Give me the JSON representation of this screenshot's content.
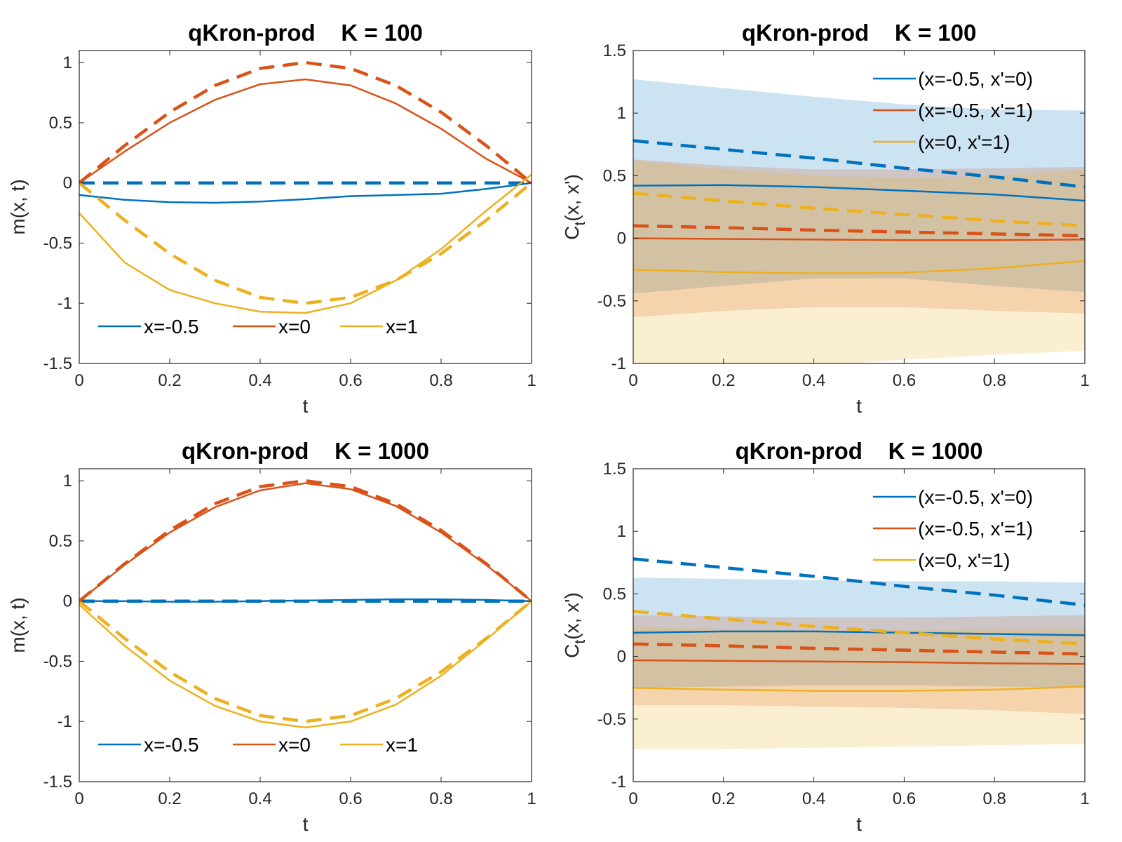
{
  "chart_data": [
    {
      "type": "line",
      "title": "qKron-prod    K = 100",
      "xlabel": "t",
      "ylabel": "m(x, t)",
      "xlim": [
        0,
        1
      ],
      "ylim": [
        -1.5,
        1.1
      ],
      "xticks": [
        0,
        0.2,
        0.4,
        0.6,
        0.8,
        1
      ],
      "xtick_labels": [
        "0",
        "0.2",
        "0.4",
        "0.6",
        "0.8",
        "1"
      ],
      "yticks": [
        -1.5,
        -1,
        -0.5,
        0,
        0.5,
        1
      ],
      "ytick_labels": [
        "-1.5",
        "-1",
        "-0.5",
        "0",
        "0.5",
        "1"
      ],
      "legend_position": "bottom",
      "legend_layout": "horizontal",
      "legend": [
        "x=-0.5",
        "x=0",
        "x=1"
      ],
      "series": [
        {
          "name": "x=-0.5",
          "color": "#0072BD",
          "x": [
            0,
            0.1,
            0.2,
            0.3,
            0.4,
            0.5,
            0.6,
            0.7,
            0.8,
            0.9,
            1
          ],
          "mean": [
            -0.1,
            -0.14,
            -0.16,
            -0.165,
            -0.155,
            -0.135,
            -0.11,
            -0.1,
            -0.09,
            -0.05,
            0
          ],
          "truth": [
            0,
            0,
            0,
            0,
            0,
            0,
            0,
            0,
            0,
            0,
            0
          ]
        },
        {
          "name": "x=0",
          "color": "#D95319",
          "x": [
            0,
            0.1,
            0.2,
            0.3,
            0.4,
            0.5,
            0.6,
            0.7,
            0.8,
            0.9,
            1
          ],
          "mean": [
            0,
            0.26,
            0.5,
            0.69,
            0.82,
            0.86,
            0.81,
            0.66,
            0.45,
            0.2,
            0
          ],
          "truth": [
            0,
            0.309,
            0.588,
            0.809,
            0.951,
            1,
            0.951,
            0.809,
            0.588,
            0.309,
            0
          ]
        },
        {
          "name": "x=1",
          "color": "#EDB120",
          "x": [
            0,
            0.1,
            0.2,
            0.3,
            0.4,
            0.5,
            0.6,
            0.7,
            0.8,
            0.9,
            1
          ],
          "mean": [
            -0.25,
            -0.66,
            -0.89,
            -1.0,
            -1.07,
            -1.08,
            -1.0,
            -0.81,
            -0.55,
            -0.23,
            0.07
          ],
          "truth": [
            0,
            -0.309,
            -0.588,
            -0.809,
            -0.951,
            -1,
            -0.951,
            -0.809,
            -0.588,
            -0.309,
            0
          ]
        }
      ]
    },
    {
      "type": "line",
      "title": "qKron-prod    K = 100",
      "xlabel": "t",
      "ylabel": "C_t(x, x')",
      "xlim": [
        0,
        1
      ],
      "ylim": [
        -1,
        1.5
      ],
      "xticks": [
        0,
        0.2,
        0.4,
        0.6,
        0.8,
        1
      ],
      "xtick_labels": [
        "0",
        "0.2",
        "0.4",
        "0.6",
        "0.8",
        "1"
      ],
      "yticks": [
        -1,
        -0.5,
        0,
        0.5,
        1,
        1.5
      ],
      "ytick_labels": [
        "-1",
        "-0.5",
        "0",
        "0.5",
        "1",
        "1.5"
      ],
      "legend_position": "top-right",
      "legend_layout": "vertical",
      "legend": [
        "(x=-0.5, x'=0)",
        "(x=-0.5, x'=1)",
        "(x=0, x'=1)"
      ],
      "series": [
        {
          "name": "(x=-0.5, x'=0)",
          "color": "#0072BD",
          "x": [
            0,
            0.2,
            0.4,
            0.6,
            0.8,
            1
          ],
          "mean": [
            0.42,
            0.425,
            0.41,
            0.38,
            0.35,
            0.3
          ],
          "band_upper": [
            1.27,
            1.2,
            1.13,
            1.07,
            1.03,
            1.02
          ],
          "band_lower": [
            -0.44,
            -0.38,
            -0.32,
            -0.32,
            -0.38,
            -0.43
          ],
          "truth": [
            0.78,
            0.71,
            0.64,
            0.56,
            0.49,
            0.41
          ]
        },
        {
          "name": "(x=-0.5, x'=1)",
          "color": "#D95319",
          "x": [
            0,
            0.2,
            0.4,
            0.6,
            0.8,
            1
          ],
          "mean": [
            0.0,
            -0.005,
            -0.01,
            -0.015,
            -0.015,
            -0.01
          ],
          "band_upper": [
            0.63,
            0.58,
            0.55,
            0.55,
            0.56,
            0.57
          ],
          "band_lower": [
            -0.63,
            -0.58,
            -0.55,
            -0.55,
            -0.58,
            -0.6
          ],
          "truth": [
            0.1,
            0.085,
            0.065,
            0.05,
            0.035,
            0.02
          ]
        },
        {
          "name": "(x=0, x'=1)",
          "color": "#EDB120",
          "x": [
            0,
            0.2,
            0.4,
            0.6,
            0.8,
            1
          ],
          "mean": [
            -0.25,
            -0.27,
            -0.28,
            -0.275,
            -0.24,
            -0.18
          ],
          "band_upper": [
            0.62,
            0.55,
            0.5,
            0.48,
            0.5,
            0.55
          ],
          "band_lower": [
            -1.05,
            -1.05,
            -1.02,
            -0.97,
            -0.93,
            -0.9
          ],
          "truth": [
            0.36,
            0.3,
            0.24,
            0.19,
            0.14,
            0.1
          ]
        }
      ]
    },
    {
      "type": "line",
      "title": "qKron-prod    K = 1000",
      "xlabel": "t",
      "ylabel": "m(x, t)",
      "xlim": [
        0,
        1
      ],
      "ylim": [
        -1.5,
        1.1
      ],
      "xticks": [
        0,
        0.2,
        0.4,
        0.6,
        0.8,
        1
      ],
      "xtick_labels": [
        "0",
        "0.2",
        "0.4",
        "0.6",
        "0.8",
        "1"
      ],
      "yticks": [
        -1.5,
        -1,
        -0.5,
        0,
        0.5,
        1
      ],
      "ytick_labels": [
        "-1.5",
        "-1",
        "-0.5",
        "0",
        "0.5",
        "1"
      ],
      "legend_position": "bottom",
      "legend_layout": "horizontal",
      "legend": [
        "x=-0.5",
        "x=0",
        "x=1"
      ],
      "series": [
        {
          "name": "x=-0.5",
          "color": "#0072BD",
          "x": [
            0,
            0.1,
            0.2,
            0.3,
            0.4,
            0.5,
            0.6,
            0.7,
            0.8,
            0.9,
            1
          ],
          "mean": [
            0,
            0,
            -0.005,
            -0.005,
            0,
            0.005,
            0.01,
            0.015,
            0.015,
            0.01,
            0
          ],
          "truth": [
            0,
            0,
            0,
            0,
            0,
            0,
            0,
            0,
            0,
            0,
            0
          ]
        },
        {
          "name": "x=0",
          "color": "#D95319",
          "x": [
            0,
            0.1,
            0.2,
            0.3,
            0.4,
            0.5,
            0.6,
            0.7,
            0.8,
            0.9,
            1
          ],
          "mean": [
            0,
            0.3,
            0.57,
            0.78,
            0.92,
            0.98,
            0.93,
            0.79,
            0.57,
            0.3,
            0
          ],
          "truth": [
            0,
            0.309,
            0.588,
            0.809,
            0.951,
            1,
            0.951,
            0.809,
            0.588,
            0.309,
            0
          ]
        },
        {
          "name": "x=1",
          "color": "#EDB120",
          "x": [
            0,
            0.1,
            0.2,
            0.3,
            0.4,
            0.5,
            0.6,
            0.7,
            0.8,
            0.9,
            1
          ],
          "mean": [
            -0.03,
            -0.37,
            -0.66,
            -0.87,
            -1.0,
            -1.05,
            -1.0,
            -0.86,
            -0.62,
            -0.32,
            0
          ],
          "truth": [
            0,
            -0.309,
            -0.588,
            -0.809,
            -0.951,
            -1,
            -0.951,
            -0.809,
            -0.588,
            -0.309,
            0
          ]
        }
      ]
    },
    {
      "type": "line",
      "title": "qKron-prod    K = 1000",
      "xlabel": "t",
      "ylabel": "C_t(x, x')",
      "xlim": [
        0,
        1
      ],
      "ylim": [
        -1,
        1.5
      ],
      "xticks": [
        0,
        0.2,
        0.4,
        0.6,
        0.8,
        1
      ],
      "xtick_labels": [
        "0",
        "0.2",
        "0.4",
        "0.6",
        "0.8",
        "1"
      ],
      "yticks": [
        -1,
        -0.5,
        0,
        0.5,
        1,
        1.5
      ],
      "ytick_labels": [
        "-1",
        "-0.5",
        "0",
        "0.5",
        "1",
        "1.5"
      ],
      "legend_position": "top-right",
      "legend_layout": "vertical",
      "legend": [
        "(x=-0.5, x'=0)",
        "(x=-0.5, x'=1)",
        "(x=0, x'=1)"
      ],
      "series": [
        {
          "name": "(x=-0.5, x'=0)",
          "color": "#0072BD",
          "x": [
            0,
            0.2,
            0.4,
            0.6,
            0.8,
            1
          ],
          "mean": [
            0.19,
            0.2,
            0.2,
            0.19,
            0.18,
            0.17
          ],
          "band_upper": [
            0.63,
            0.62,
            0.61,
            0.6,
            0.6,
            0.59
          ],
          "band_lower": [
            -0.25,
            -0.24,
            -0.23,
            -0.23,
            -0.24,
            -0.25
          ],
          "truth": [
            0.78,
            0.71,
            0.64,
            0.56,
            0.49,
            0.41
          ]
        },
        {
          "name": "(x=-0.5, x'=1)",
          "color": "#D95319",
          "x": [
            0,
            0.2,
            0.4,
            0.6,
            0.8,
            1
          ],
          "mean": [
            -0.03,
            -0.035,
            -0.04,
            -0.045,
            -0.055,
            -0.06
          ],
          "band_upper": [
            0.33,
            0.32,
            0.31,
            0.31,
            0.32,
            0.33
          ],
          "band_lower": [
            -0.39,
            -0.39,
            -0.4,
            -0.41,
            -0.43,
            -0.46
          ],
          "truth": [
            0.1,
            0.085,
            0.065,
            0.05,
            0.035,
            0.02
          ]
        },
        {
          "name": "(x=0, x'=1)",
          "color": "#EDB120",
          "x": [
            0,
            0.2,
            0.4,
            0.6,
            0.8,
            1
          ],
          "mean": [
            -0.25,
            -0.265,
            -0.275,
            -0.275,
            -0.265,
            -0.24
          ],
          "band_upper": [
            0.24,
            0.22,
            0.21,
            0.21,
            0.22,
            0.22
          ],
          "band_lower": [
            -0.74,
            -0.74,
            -0.73,
            -0.72,
            -0.71,
            -0.7
          ],
          "truth": [
            0.36,
            0.3,
            0.24,
            0.19,
            0.14,
            0.1
          ]
        }
      ]
    }
  ]
}
